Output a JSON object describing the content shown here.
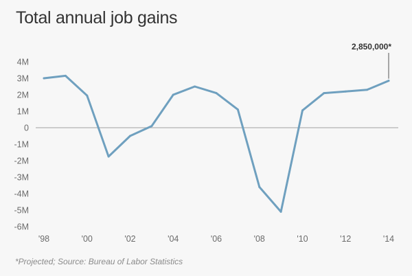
{
  "chart_data": {
    "type": "line",
    "title": "Total annual job gains",
    "note": "*Projected; Source: Bureau of Labor Statistics",
    "xlabel": "",
    "ylabel": "",
    "x": [
      1998,
      1999,
      2000,
      2001,
      2002,
      2003,
      2004,
      2005,
      2006,
      2007,
      2008,
      2009,
      2010,
      2011,
      2012,
      2013,
      2014
    ],
    "xlim": [
      1998,
      2014
    ],
    "ylim": [
      -6000000,
      4000000
    ],
    "grid": false,
    "series": [
      {
        "values": [
          3000000,
          3150000,
          1950000,
          -1750000,
          -500000,
          100000,
          2000000,
          2500000,
          2100000,
          1100000,
          -3600000,
          -5100000,
          1050000,
          2100000,
          2200000,
          2300000,
          2850000
        ]
      }
    ],
    "x_ticks": [
      {
        "value": 1998,
        "label": "'98"
      },
      {
        "value": 2000,
        "label": "'00"
      },
      {
        "value": 2002,
        "label": "'02"
      },
      {
        "value": 2004,
        "label": "'04"
      },
      {
        "value": 2006,
        "label": "'06"
      },
      {
        "value": 2008,
        "label": "'08"
      },
      {
        "value": 2010,
        "label": "'10"
      },
      {
        "value": 2012,
        "label": "'12"
      },
      {
        "value": 2014,
        "label": "'14"
      }
    ],
    "y_ticks": [
      {
        "value": 4000000,
        "label": "4M"
      },
      {
        "value": 3000000,
        "label": "3M"
      },
      {
        "value": 2000000,
        "label": "2M"
      },
      {
        "value": 1000000,
        "label": "1M"
      },
      {
        "value": 0,
        "label": "0"
      },
      {
        "value": -1000000,
        "label": "-1M"
      },
      {
        "value": -2000000,
        "label": "-2M"
      },
      {
        "value": -3000000,
        "label": "-3M"
      },
      {
        "value": -4000000,
        "label": "-4M"
      },
      {
        "value": -5000000,
        "label": "-5M"
      },
      {
        "value": -6000000,
        "label": "-6M"
      }
    ],
    "annotation": {
      "x": 2014,
      "y": 2850000,
      "label": "2,850,000*"
    },
    "colors": {
      "line": "#6fa0bf",
      "zero_line": "#b3b3b3",
      "text": "#6b6b6b",
      "background": "#f7f7f7"
    }
  }
}
